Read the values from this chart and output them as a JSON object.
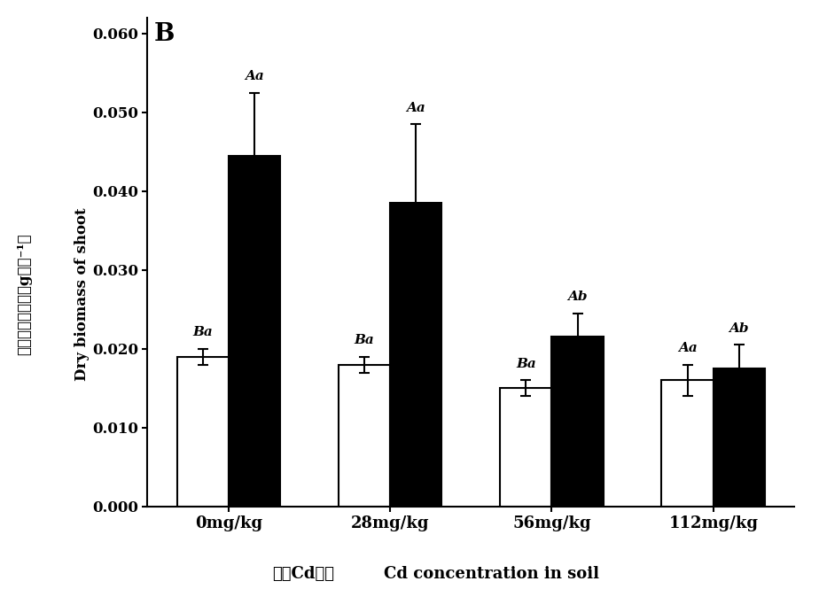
{
  "categories": [
    "0mg/kg",
    "28mg/kg",
    "56mg/kg",
    "112mg/kg"
  ],
  "white_bars": [
    0.019,
    0.018,
    0.015,
    0.016
  ],
  "black_bars": [
    0.0445,
    0.0385,
    0.0215,
    0.0175
  ],
  "white_errors": [
    0.001,
    0.001,
    0.001,
    0.002
  ],
  "black_errors": [
    0.008,
    0.01,
    0.003,
    0.003
  ],
  "white_labels": [
    "Ba",
    "Ba",
    "Ba",
    "Aa"
  ],
  "black_labels": [
    "Aa",
    "Aa",
    "Ab",
    "Ab"
  ],
  "xlabel_chinese": "土壭Cd浓度",
  "xlabel_english": "Cd concentration in soil",
  "ylabel_chinese": "地上部干质量／（g･株⁻¹）",
  "ylabel_english": "Dry biomass of shoot",
  "panel_label": "B",
  "ylim": [
    0,
    0.062
  ],
  "yticks": [
    0.0,
    0.01,
    0.02,
    0.03,
    0.04,
    0.05,
    0.06
  ],
  "bar_width": 0.32,
  "white_color": "#ffffff",
  "black_color": "#000000",
  "edge_color": "#000000"
}
